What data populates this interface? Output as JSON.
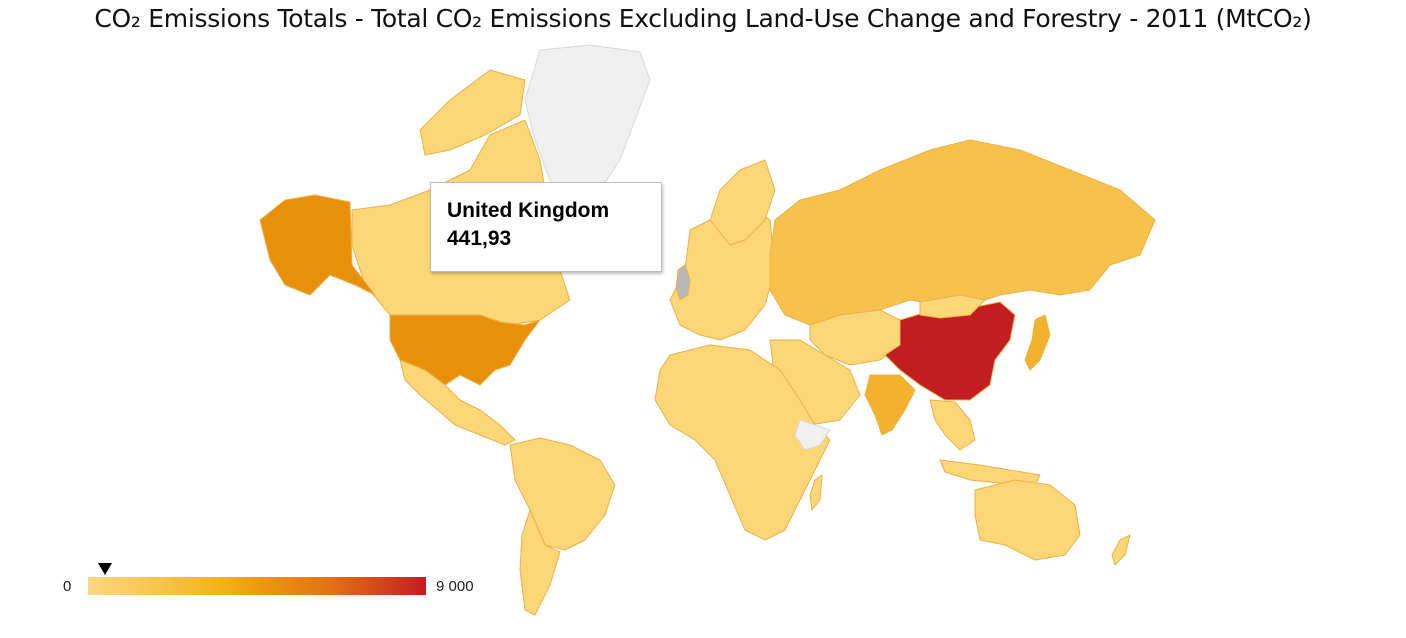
{
  "title": "CO₂ Emissions Totals - Total CO₂ Emissions Excluding Land-Use Change and Forestry - 2011 (MtCO₂)",
  "tooltip": {
    "country": "United Kingdom",
    "value": "441,93"
  },
  "legend": {
    "min_label": "0",
    "max_label": "9 000",
    "min": 0,
    "max": 9000,
    "marker_value": 441.93
  },
  "colors": {
    "low": "#fdd880",
    "mid": "#ee9a10",
    "high": "#c21e22",
    "no_data": "#f0f0f0",
    "china": "#c21e22",
    "usa": "#e8900a",
    "russia": "#f7c24c",
    "default_country": "#fcd677"
  },
  "highlighted": [
    "China",
    "United States",
    "Russia",
    "India",
    "Japan"
  ]
}
